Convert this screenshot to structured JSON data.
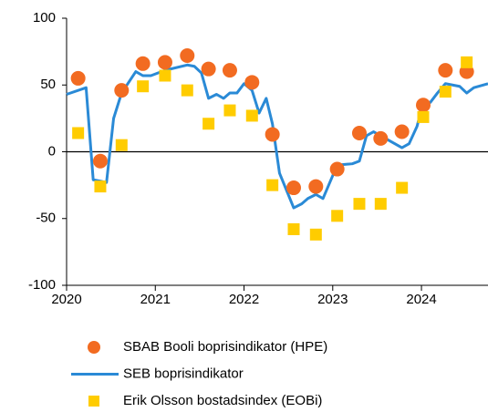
{
  "chart_data": {
    "type": "scatter",
    "xlim": [
      2020,
      2024.75
    ],
    "xticks": [
      2020,
      2021,
      2022,
      2023,
      2024
    ],
    "ylim": [
      -100,
      100
    ],
    "yticks": [
      -100,
      -50,
      0,
      50,
      100
    ],
    "series": [
      {
        "name": "SBAB Booli boprisindikator (HPE)",
        "marker": "circle",
        "color": "#f26b21",
        "x": [
          2020.13,
          2020.38,
          2020.62,
          2020.86,
          2021.11,
          2021.36,
          2021.6,
          2021.84,
          2022.09,
          2022.32,
          2022.56,
          2022.81,
          2023.05,
          2023.3,
          2023.54,
          2023.78,
          2024.02,
          2024.27,
          2024.51
        ],
        "values": [
          55,
          -7,
          46,
          66,
          67,
          72,
          62,
          61,
          52,
          13,
          -27,
          -26,
          -13,
          14,
          10,
          15,
          35,
          61,
          60
        ]
      },
      {
        "name": "SEB boprisindikator",
        "marker": "line",
        "color": "#2a8ad6",
        "x": [
          2020.0,
          2020.22,
          2020.3,
          2020.38,
          2020.45,
          2020.53,
          2020.62,
          2020.78,
          2020.86,
          2020.95,
          2021.11,
          2021.36,
          2021.44,
          2021.52,
          2021.6,
          2021.69,
          2021.77,
          2021.84,
          2021.92,
          2022.0,
          2022.09,
          2022.17,
          2022.25,
          2022.32,
          2022.4,
          2022.56,
          2022.65,
          2022.72,
          2022.81,
          2022.89,
          2023.05,
          2023.22,
          2023.3,
          2023.38,
          2023.46,
          2023.62,
          2023.7,
          2023.78,
          2023.86,
          2023.95,
          2024.02,
          2024.1,
          2024.18,
          2024.27,
          2024.35,
          2024.43,
          2024.51,
          2024.59,
          2024.75
        ],
        "values": [
          43,
          48,
          -21,
          -22,
          -23,
          25,
          44,
          60,
          57,
          57,
          61,
          65,
          64,
          59,
          40,
          43,
          40,
          44,
          44,
          51,
          46,
          29,
          40,
          21,
          -16,
          -42,
          -39,
          -35,
          -32,
          -35,
          -10,
          -9,
          -7,
          12,
          15,
          9,
          6,
          3,
          6,
          19,
          37,
          37,
          44,
          51,
          50,
          49,
          44,
          48,
          51
        ]
      },
      {
        "name": "Erik Olsson bostadsindex (EOBi)",
        "marker": "square",
        "color": "#ffcc00",
        "x": [
          2020.13,
          2020.38,
          2020.62,
          2020.86,
          2021.11,
          2021.36,
          2021.6,
          2021.84,
          2022.09,
          2022.32,
          2022.56,
          2022.81,
          2023.05,
          2023.3,
          2023.54,
          2023.78,
          2024.02,
          2024.27,
          2024.51
        ],
        "values": [
          14,
          -26,
          5,
          49,
          57,
          46,
          21,
          31,
          27,
          -25,
          -58,
          -62,
          -48,
          -39,
          -39,
          -27,
          26,
          45,
          67
        ]
      }
    ]
  }
}
